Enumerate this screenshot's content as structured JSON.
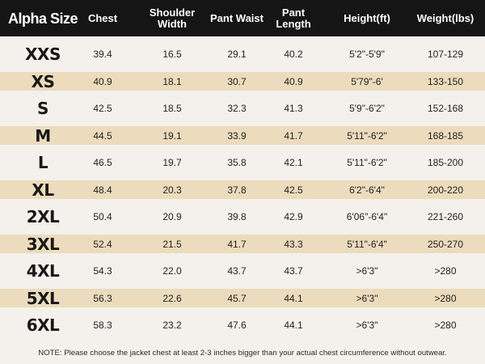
{
  "header": {
    "columns": [
      "Alpha Size",
      "Chest",
      "Shoulder Width",
      "Pant Waist",
      "Pant Length",
      "Height(ft)",
      "Weight(lbs)"
    ],
    "background": "#151515",
    "text_color": "#ffffff"
  },
  "rows": [
    {
      "size": "XXS",
      "chest": "39.4",
      "shoulder": "16.5",
      "waist": "29.1",
      "length": "40.2",
      "height": "5'2\"-5'9\"",
      "weight": "107-129"
    },
    {
      "size": "XS",
      "chest": "40.9",
      "shoulder": "18.1",
      "waist": "30.7",
      "length": "40.9",
      "height": "5'79\"-6'",
      "weight": "133-150"
    },
    {
      "size": "S",
      "chest": "42.5",
      "shoulder": "18.5",
      "waist": "32.3",
      "length": "41.3",
      "height": "5'9\"-6'2\"",
      "weight": "152-168"
    },
    {
      "size": "M",
      "chest": "44.5",
      "shoulder": "19.1",
      "waist": "33.9",
      "length": "41.7",
      "height": "5'11\"-6'2\"",
      "weight": "168-185"
    },
    {
      "size": "L",
      "chest": "46.5",
      "shoulder": "19.7",
      "waist": "35.8",
      "length": "42.1",
      "height": "5'11\"-6'2\"",
      "weight": "185-200"
    },
    {
      "size": "XL",
      "chest": "48.4",
      "shoulder": "20.3",
      "waist": "37.8",
      "length": "42.5",
      "height": "6'2\"-6'4\"",
      "weight": "200-220"
    },
    {
      "size": "2XL",
      "chest": "50.4",
      "shoulder": "20.9",
      "waist": "39.8",
      "length": "42.9",
      "height": "6'06\"-6'4\"",
      "weight": "221-260"
    },
    {
      "size": "3XL",
      "chest": "52.4",
      "shoulder": "21.5",
      "waist": "41.7",
      "length": "43.3",
      "height": "5'11\"-6'4\"",
      "weight": "250-270"
    },
    {
      "size": "4XL",
      "chest": "54.3",
      "shoulder": "22.0",
      "waist": "43.7",
      "length": "43.7",
      "height": ">6'3\"",
      "weight": ">280"
    },
    {
      "size": "5XL",
      "chest": "56.3",
      "shoulder": "22.6",
      "waist": "45.7",
      "length": "44.1",
      "height": ">6'3\"",
      "weight": ">280"
    },
    {
      "size": "6XL",
      "chest": "58.3",
      "shoulder": "23.2",
      "waist": "47.6",
      "length": "44.1",
      "height": ">6'3\"",
      "weight": ">280"
    }
  ],
  "note": "NOTE: Please choose the jacket chest at least 2-3 inches bigger than your actual chest circumference without outwear.",
  "colors": {
    "row_light": "#f4f1ec",
    "row_shade": "#ecdcbd"
  }
}
